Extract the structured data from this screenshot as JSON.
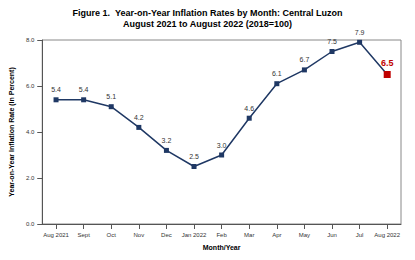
{
  "chart_data": {
    "type": "line",
    "title": "Figure 1.  Year-on-Year Inflation Rates by Month: Central Luzon",
    "subtitle": "August 2021 to August 2022 (2018=100)",
    "x_label": "Month/Year",
    "y_label": "Year-on-Year Inflation Rate (In Percent)",
    "categories": [
      "Aug 2021",
      "Sept",
      "Oct",
      "Nov",
      "Dec",
      "Jan 2022",
      "Feb",
      "Mar",
      "Apr",
      "May",
      "Jun",
      "Jul",
      "Aug 2022"
    ],
    "values": [
      5.4,
      5.4,
      5.1,
      4.2,
      3.2,
      2.5,
      3.0,
      4.6,
      6.1,
      6.7,
      7.5,
      7.9,
      6.5
    ],
    "value_labels": [
      "5.4",
      "5.4",
      "5.1",
      "4.2",
      "3.2",
      "2.5",
      "3.0",
      "4.6",
      "6.1",
      "6.7",
      "7.5",
      "7.9",
      "6.5"
    ],
    "color": "#1f3864",
    "colors": [
      "#1f3864",
      "#1f3864",
      "#1f3864",
      "#1f3864",
      "#1f3864",
      "#1f3864",
      "#1f3864",
      "#1f3864",
      "#1f3864",
      "#1f3864",
      "#1f3864",
      "#1f3864",
      "#c00000"
    ],
    "marker": "square",
    "ylim": [
      0,
      8
    ],
    "yticks": [
      {
        "value": 0,
        "label": "0.0"
      },
      {
        "value": 2,
        "label": "2.0"
      },
      {
        "value": 4,
        "label": "4.0"
      },
      {
        "value": 6,
        "label": "6.0"
      },
      {
        "value": 8,
        "label": "8.0"
      }
    ],
    "data_labels": true,
    "grid": false
  }
}
